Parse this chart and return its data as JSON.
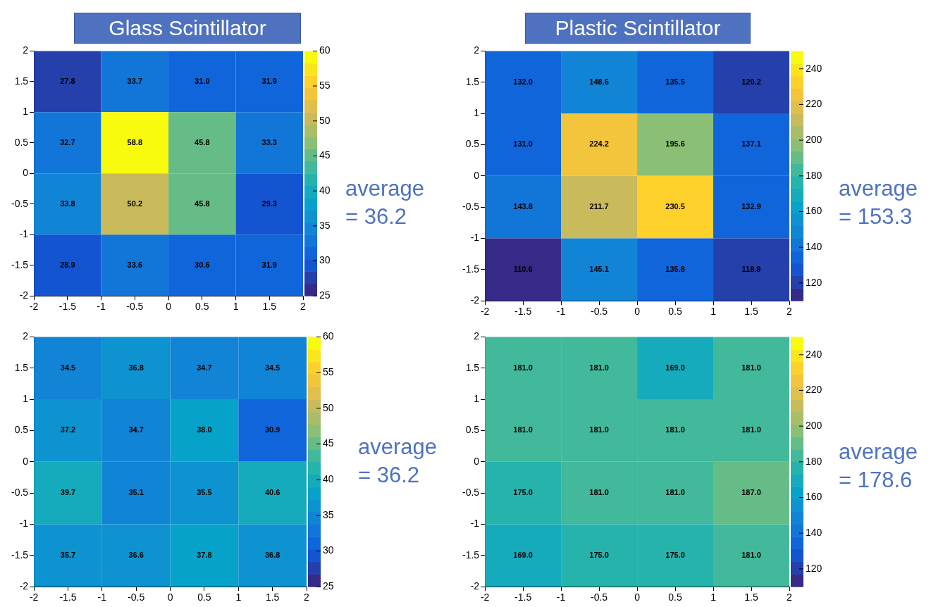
{
  "chart_data": [
    {
      "type": "heatmap",
      "title": "Glass Scintillator",
      "xlim": [
        -2,
        2
      ],
      "xticks": [
        -2,
        -1.5,
        -1,
        -0.5,
        0,
        0.5,
        1,
        1.5,
        2
      ],
      "ylim": [
        -2,
        2
      ],
      "yticks": [
        -2,
        -1.5,
        -1,
        -0.5,
        0,
        0.5,
        1,
        1.5,
        2
      ],
      "clim": [
        25,
        60
      ],
      "cticks": [
        25,
        30,
        35,
        40,
        45,
        50,
        55,
        60
      ],
      "cells": [
        [
          27.8,
          33.7,
          31.0,
          31.9
        ],
        [
          32.7,
          58.8,
          45.8,
          33.3
        ],
        [
          33.8,
          50.2,
          45.8,
          29.3
        ],
        [
          28.9,
          33.6,
          30.6,
          31.9
        ]
      ],
      "cell_labels": [
        [
          "27.8",
          "33.7",
          "31.0",
          "31.9"
        ],
        [
          "32.7",
          "58.8",
          "45.8",
          "33.3"
        ],
        [
          "33.8",
          "50.2",
          "45.8",
          "29.3"
        ],
        [
          "28.9",
          "33.6",
          "30.6",
          "31.9"
        ]
      ],
      "annotations": [
        "average = 36.2"
      ]
    },
    {
      "type": "heatmap",
      "title": "Plastic Scintillator",
      "xlim": [
        -2,
        2
      ],
      "xticks": [
        -2,
        -1.5,
        -1,
        -0.5,
        0,
        0.5,
        1,
        1.5,
        2
      ],
      "ylim": [
        -2,
        2
      ],
      "yticks": [
        -2,
        -1.5,
        -1,
        -0.5,
        0,
        0.5,
        1,
        1.5,
        2
      ],
      "clim": [
        110,
        250
      ],
      "cticks": [
        120,
        140,
        160,
        180,
        200,
        220,
        240
      ],
      "cells": [
        [
          132.0,
          148.6,
          135.5,
          120.2
        ],
        [
          131.0,
          224.2,
          195.6,
          137.1
        ],
        [
          143.8,
          211.7,
          230.5,
          132.9
        ],
        [
          110.6,
          145.1,
          135.8,
          118.9
        ]
      ],
      "cell_labels": [
        [
          "132.0",
          "148.6",
          "135.5",
          "120.2"
        ],
        [
          "131.0",
          "224.2",
          "195.6",
          "137.1"
        ],
        [
          "143.8",
          "211.7",
          "230.5",
          "132.9"
        ],
        [
          "110.6",
          "145.1",
          "135.8",
          "118.9"
        ]
      ],
      "annotations": [
        "average = 153.3"
      ]
    },
    {
      "type": "heatmap",
      "xlim": [
        -2,
        2
      ],
      "xticks": [
        -2,
        -1.5,
        -1,
        -0.5,
        0,
        0.5,
        1,
        1.5,
        2
      ],
      "ylim": [
        -2,
        2
      ],
      "yticks": [
        -2,
        -1.5,
        -1,
        -0.5,
        0,
        0.5,
        1,
        1.5,
        2
      ],
      "clim": [
        25,
        60
      ],
      "cticks": [
        25,
        30,
        35,
        40,
        45,
        50,
        55,
        60
      ],
      "cells": [
        [
          34.5,
          36.8,
          34.7,
          34.5
        ],
        [
          37.2,
          34.7,
          38.0,
          30.9
        ],
        [
          39.7,
          35.1,
          35.5,
          40.6
        ],
        [
          35.7,
          36.6,
          37.8,
          36.8
        ]
      ],
      "cell_labels": [
        [
          "34.5",
          "36.8",
          "34.7",
          "34.5"
        ],
        [
          "37.2",
          "34.7",
          "38.0",
          "30.9"
        ],
        [
          "39.7",
          "35.1",
          "35.5",
          "40.6"
        ],
        [
          "35.7",
          "36.6",
          "37.8",
          "36.8"
        ]
      ],
      "annotations": [
        "average = 36.2"
      ]
    },
    {
      "type": "heatmap",
      "xlim": [
        -2,
        2
      ],
      "xticks": [
        -2,
        -1.5,
        -1,
        -0.5,
        0,
        0.5,
        1,
        1.5,
        2
      ],
      "ylim": [
        -2,
        2
      ],
      "yticks": [
        -2,
        -1.5,
        -1,
        -0.5,
        0,
        0.5,
        1,
        1.5,
        2
      ],
      "clim": [
        110,
        250
      ],
      "cticks": [
        120,
        140,
        160,
        180,
        200,
        220,
        240
      ],
      "cells": [
        [
          181.0,
          181.0,
          169.0,
          181.0
        ],
        [
          181.0,
          181.0,
          181.0,
          181.0
        ],
        [
          175.0,
          181.0,
          181.0,
          187.0
        ],
        [
          169.0,
          175.0,
          175.0,
          181.0
        ]
      ],
      "cell_labels": [
        [
          "181.0",
          "181.0",
          "169.0",
          "181.0"
        ],
        [
          "181.0",
          "181.0",
          "181.0",
          "181.0"
        ],
        [
          "175.0",
          "181.0",
          "181.0",
          "187.0"
        ],
        [
          "169.0",
          "175.0",
          "175.0",
          "181.0"
        ]
      ],
      "annotations": [
        "average = 178.6"
      ]
    }
  ]
}
